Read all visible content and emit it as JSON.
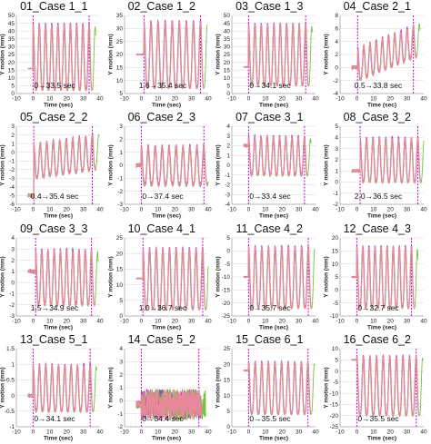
{
  "colors": {
    "trace_primary": "#e8889a",
    "trace_secondary": "#5a6a9a",
    "trace_magenta": "#e020e0",
    "trace_green": "#7ac143",
    "trace_cyan": "#20a0c0",
    "marker": "#cc00cc",
    "grid": "#d8d8d8",
    "axis": "#888888"
  },
  "chart_data": [
    {
      "type": "line",
      "title": "01_Case 1_1",
      "annotation": "0→33.5 sec",
      "xlabel": "Time (sec)",
      "ylabel": "Y motion (mm)",
      "xlim": [
        -10,
        40
      ],
      "xticks": [
        -10,
        0,
        10,
        20,
        30,
        40
      ],
      "ylim": [
        0,
        50
      ],
      "yticks": [
        0,
        5,
        10,
        15,
        20,
        25,
        30,
        35,
        40,
        45,
        50
      ],
      "markers": [
        0,
        33.5
      ],
      "signal": {
        "baseline": 16,
        "low": 2,
        "high": 45,
        "cycles": 9,
        "start": 0,
        "end": 33.5,
        "noise": 0.2
      }
    },
    {
      "type": "line",
      "title": "02_Case 1_2",
      "annotation": "1.6→35.4 sec",
      "xlabel": "Time (sec)",
      "ylabel": "Y motion (mm)",
      "xlim": [
        -10,
        40
      ],
      "xticks": [
        -10,
        0,
        10,
        20,
        30,
        40
      ],
      "ylim": [
        5,
        35
      ],
      "yticks": [
        5,
        10,
        15,
        20,
        25,
        30,
        35
      ],
      "markers": [
        1.6,
        35.4
      ],
      "signal": {
        "baseline": 20,
        "low": 7,
        "high": 33,
        "cycles": 8,
        "start": 1.6,
        "end": 35.4,
        "noise": 0.2
      }
    },
    {
      "type": "line",
      "title": "03_Case 1_3",
      "annotation": "0→34.1 sec",
      "xlabel": "Time (sec)",
      "ylabel": "Y motion (mm)",
      "xlim": [
        -10,
        40
      ],
      "xticks": [
        -10,
        0,
        10,
        20,
        30,
        40
      ],
      "ylim": [
        0,
        50
      ],
      "yticks": [
        0,
        5,
        10,
        15,
        20,
        25,
        30,
        35,
        40,
        45,
        50
      ],
      "markers": [
        0,
        34.1
      ],
      "signal": {
        "baseline": 17,
        "low": 5,
        "high": 45,
        "cycles": 9,
        "start": 0,
        "end": 34.1,
        "noise": 0.3
      }
    },
    {
      "type": "line",
      "title": "04_Case 2_1",
      "annotation": "0.5→33.8 sec",
      "xlabel": "Time (sec)",
      "ylabel": "Y motion (mm)",
      "xlim": [
        -10,
        40
      ],
      "xticks": [
        -10,
        0,
        10,
        20,
        30,
        40
      ],
      "ylim": [
        -4,
        8
      ],
      "yticks": [
        -4,
        -2,
        0,
        2,
        4,
        6,
        8
      ],
      "markers": [
        0.5,
        33.8
      ],
      "signal": {
        "baseline": 0,
        "low": -2,
        "high": 3,
        "cycles": 9,
        "start": 0.5,
        "end": 33.8,
        "noise": 0.5,
        "drift": 3.5
      }
    },
    {
      "type": "line",
      "title": "05_Case 2_2",
      "annotation": "0.4→35.4 sec",
      "xlabel": "Time (sec)",
      "ylabel": "Y motion (mm)",
      "xlim": [
        -10,
        40
      ],
      "xticks": [
        -10,
        0,
        10,
        20,
        30,
        40
      ],
      "ylim": [
        -6,
        3
      ],
      "yticks": [
        -6,
        -5,
        -4,
        -3,
        -2,
        -1,
        0,
        1,
        2,
        3
      ],
      "markers": [
        0.4,
        35.4
      ],
      "signal": {
        "baseline": -5,
        "low": -3,
        "high": 1,
        "cycles": 9,
        "start": 0.4,
        "end": 35.4,
        "noise": 0.4,
        "drift": 1
      }
    },
    {
      "type": "line",
      "title": "06_Case 2_3",
      "annotation": "0→37.4 sec",
      "xlabel": "Time (sec)",
      "ylabel": "Y motion (mm)",
      "xlim": [
        -10,
        40
      ],
      "xticks": [
        -10,
        0,
        10,
        20,
        30,
        40
      ],
      "ylim": [
        -3,
        3
      ],
      "yticks": [
        -3,
        -2,
        -1,
        0,
        1,
        2,
        3
      ],
      "markers": [
        0,
        37.4
      ],
      "signal": {
        "baseline": 0,
        "low": -1.5,
        "high": 1.5,
        "cycles": 9,
        "start": 0,
        "end": 37.4,
        "noise": 0.3
      }
    },
    {
      "type": "line",
      "title": "07_Case 3_1",
      "annotation": "0→33.4 sec",
      "xlabel": "Time (sec)",
      "ylabel": "Y motion (mm)",
      "xlim": [
        -10,
        40
      ],
      "xticks": [
        -10,
        0,
        10,
        20,
        30,
        40
      ],
      "ylim": [
        -4,
        4
      ],
      "yticks": [
        -4,
        -3,
        -2,
        -1,
        0,
        1,
        2,
        3,
        4
      ],
      "markers": [
        0,
        33.4
      ],
      "signal": {
        "baseline": 2,
        "low": -1,
        "high": 3,
        "cycles": 9,
        "start": 0,
        "end": 33.4,
        "noise": 0.3
      }
    },
    {
      "type": "line",
      "title": "08_Case 3_2",
      "annotation": "2.0→36.5 sec",
      "xlabel": "Time (sec)",
      "ylabel": "Y motion (mm)",
      "xlim": [
        -10,
        40
      ],
      "xticks": [
        -10,
        0,
        10,
        20,
        30,
        40
      ],
      "ylim": [
        -2,
        5
      ],
      "yticks": [
        -2,
        -1,
        0,
        1,
        2,
        3,
        4,
        5
      ],
      "markers": [
        2.0,
        36.5
      ],
      "signal": {
        "baseline": 1,
        "low": 0,
        "high": 4,
        "cycles": 9,
        "start": 2,
        "end": 36.5,
        "noise": 0.2
      }
    },
    {
      "type": "line",
      "title": "09_Case 3_3",
      "annotation": "1.5→34.9 sec",
      "xlabel": "Time (sec)",
      "ylabel": "Y motion (mm)",
      "xlim": [
        -10,
        40
      ],
      "xticks": [
        -10,
        0,
        10,
        20,
        30,
        40
      ],
      "ylim": [
        -3,
        4
      ],
      "yticks": [
        -3,
        -2,
        -1,
        0,
        1,
        2,
        3,
        4
      ],
      "markers": [
        1.5,
        34.9
      ],
      "signal": {
        "baseline": 1,
        "low": -2,
        "high": 3,
        "cycles": 9,
        "start": 1.5,
        "end": 34.9,
        "noise": 0.3
      }
    },
    {
      "type": "line",
      "title": "10_Case 4_1",
      "annotation": "1.0→36.7 sec",
      "xlabel": "Time (sec)",
      "ylabel": "Y motion (mm)",
      "xlim": [
        -10,
        40
      ],
      "xticks": [
        -10,
        0,
        10,
        20,
        30,
        40
      ],
      "ylim": [
        0,
        25
      ],
      "yticks": [
        0,
        5,
        10,
        15,
        20,
        25
      ],
      "markers": [
        1.0,
        36.7
      ],
      "signal": {
        "baseline": 12,
        "low": 2,
        "high": 22,
        "cycles": 9,
        "start": 1,
        "end": 36.7,
        "noise": 0.2
      }
    },
    {
      "type": "line",
      "title": "11_Case 4_2",
      "annotation": "0→35.7 sec",
      "xlabel": "Time (sec)",
      "ylabel": "Y motion (mm)",
      "xlim": [
        -10,
        40
      ],
      "xticks": [
        -10,
        0,
        10,
        20,
        30,
        40
      ],
      "ylim": [
        -25,
        5
      ],
      "yticks": [
        -25,
        -20,
        -15,
        -10,
        -5,
        0,
        5
      ],
      "markers": [
        0,
        35.7
      ],
      "signal": {
        "baseline": -10,
        "low": -22,
        "high": 2,
        "cycles": 9,
        "start": 0,
        "end": 35.7,
        "noise": 0.3
      }
    },
    {
      "type": "line",
      "title": "12_Case 4_3",
      "annotation": "0→32.7 sec",
      "xlabel": "Time (sec)",
      "ylabel": "Y motion (mm)",
      "xlim": [
        -10,
        40
      ],
      "xticks": [
        -10,
        0,
        10,
        20,
        30,
        40
      ],
      "ylim": [
        -10,
        20
      ],
      "yticks": [
        -10,
        -5,
        0,
        5,
        10,
        15,
        20
      ],
      "markers": [
        0,
        32.7
      ],
      "signal": {
        "baseline": 5,
        "low": -7,
        "high": 17,
        "cycles": 9,
        "start": 0,
        "end": 32.7,
        "noise": 0.3
      }
    },
    {
      "type": "line",
      "title": "13_Case 5_1",
      "annotation": "0→34.1 sec",
      "xlabel": "Time (sec)",
      "ylabel": "Y motion (mm)",
      "xlim": [
        -10,
        40
      ],
      "xticks": [
        -10,
        0,
        10,
        20,
        30,
        40
      ],
      "ylim": [
        -1,
        1.5
      ],
      "yticks": [
        -1,
        -0.5,
        0,
        0.5,
        1,
        1.5
      ],
      "markers": [
        0,
        34.1
      ],
      "signal": {
        "baseline": 0,
        "low": -0.5,
        "high": 1,
        "cycles": 9,
        "start": 0,
        "end": 34.1,
        "noise": 0.1
      }
    },
    {
      "type": "line",
      "title": "14_Case 5_2",
      "annotation": "0→34.4 sec",
      "xlabel": "Time (sec)",
      "ylabel": "Y motion (mm)",
      "xlim": [
        -10,
        40
      ],
      "xticks": [
        -10,
        0,
        10,
        20,
        30,
        40
      ],
      "ylim": [
        -2,
        4
      ],
      "yticks": [
        -2,
        -1,
        0,
        1,
        2,
        3,
        4
      ],
      "markers": [
        0,
        34.4
      ],
      "signal": {
        "baseline": -0.3,
        "low": -0.9,
        "high": 0.3,
        "cycles": 0,
        "start": 0,
        "end": 34.4,
        "noise": 0.6
      }
    },
    {
      "type": "line",
      "title": "15_Case 6_1",
      "annotation": "0→35.5 sec",
      "xlabel": "Time (sec)",
      "ylabel": "Y motion (mm)",
      "xlim": [
        -10,
        40
      ],
      "xticks": [
        -10,
        0,
        10,
        20,
        30,
        40
      ],
      "ylim": [
        0,
        25
      ],
      "yticks": [
        0,
        5,
        10,
        15,
        20,
        25
      ],
      "markers": [
        0,
        35.5
      ],
      "signal": {
        "baseline": 18,
        "low": 4,
        "high": 21,
        "cycles": 9,
        "start": 0,
        "end": 35.5,
        "noise": 0.2
      }
    },
    {
      "type": "line",
      "title": "16_Case 6_2",
      "annotation": "0→35.5 sec",
      "xlabel": "Time (sec)",
      "ylabel": "Y motion (mm)",
      "xlim": [
        -10,
        40
      ],
      "xticks": [
        -10,
        0,
        10,
        20,
        30,
        40
      ],
      "ylim": [
        -25,
        10
      ],
      "yticks": [
        -25,
        -20,
        -15,
        -10,
        -5,
        0,
        5,
        10
      ],
      "markers": [
        0,
        35.5
      ],
      "signal": {
        "baseline": 5,
        "low": -20,
        "high": 7,
        "cycles": 9,
        "start": 0,
        "end": 35.5,
        "noise": 0.3
      }
    }
  ]
}
